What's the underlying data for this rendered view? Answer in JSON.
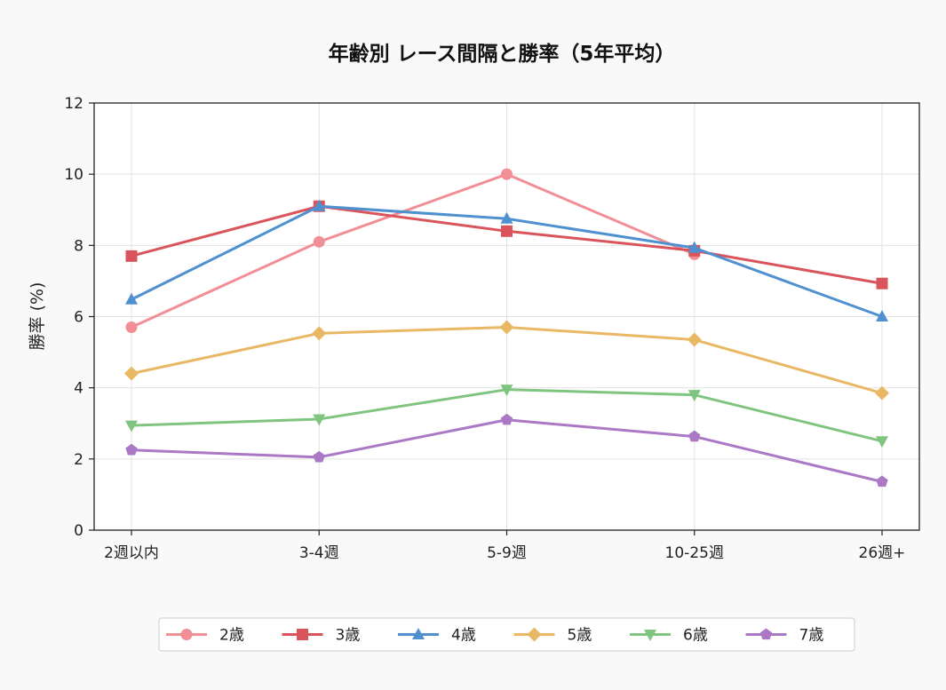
{
  "chart_data": {
    "type": "line",
    "title": "年齢別 レース間隔と勝率（5年平均）",
    "xlabel": "",
    "ylabel": "勝率 (%)",
    "categories": [
      "2週以内",
      "3-4週",
      "5-9週",
      "10-25週",
      "26週+"
    ],
    "ylim": [
      0,
      12
    ],
    "yticks": [
      0,
      2,
      4,
      6,
      8,
      10,
      12
    ],
    "grid": true,
    "legend_position": "bottom",
    "series": [
      {
        "name": "2歳",
        "values": [
          5.7,
          8.1,
          10.0,
          7.75,
          null
        ],
        "color": "#f28e96",
        "marker": "circle"
      },
      {
        "name": "3歳",
        "values": [
          7.7,
          9.1,
          8.4,
          7.85,
          6.93
        ],
        "color": "#d9555b",
        "marker": "square"
      },
      {
        "name": "4歳",
        "values": [
          6.48,
          9.1,
          8.75,
          7.93,
          6.0
        ],
        "color": "#4e90d0",
        "marker": "triangle-up"
      },
      {
        "name": "5歳",
        "values": [
          4.4,
          5.53,
          5.7,
          5.35,
          3.85
        ],
        "color": "#e9b865",
        "marker": "diamond"
      },
      {
        "name": "6歳",
        "values": [
          2.94,
          3.12,
          3.95,
          3.8,
          2.5
        ],
        "color": "#7fc47f",
        "marker": "triangle-down"
      },
      {
        "name": "7歳",
        "values": [
          2.25,
          2.05,
          3.1,
          2.63,
          1.36
        ],
        "color": "#ab78c6",
        "marker": "pentagon"
      }
    ]
  }
}
